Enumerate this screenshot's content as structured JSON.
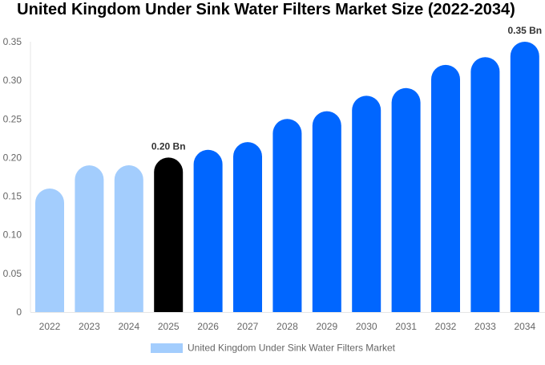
{
  "chart_data": {
    "type": "bar",
    "title": "United Kingdom Under Sink Water Filters Market Size (2022-2034)",
    "categories": [
      "2022",
      "2023",
      "2024",
      "2025",
      "2026",
      "2027",
      "2028",
      "2029",
      "2030",
      "2031",
      "2032",
      "2033",
      "2034"
    ],
    "series": [
      {
        "name": "United Kingdom Under Sink Water Filters Market",
        "values": [
          0.16,
          0.19,
          0.19,
          0.2,
          0.21,
          0.22,
          0.25,
          0.26,
          0.28,
          0.29,
          0.32,
          0.33,
          0.35
        ]
      }
    ],
    "data_labels": [
      {
        "category": "2025",
        "text": "0.20 Bn"
      },
      {
        "category": "2034",
        "text": "0.35 Bn"
      }
    ],
    "yticks": [
      "0",
      "0.05",
      "0.10",
      "0.15",
      "0.20",
      "0.25",
      "0.30",
      "0.35"
    ],
    "ylim": [
      0,
      0.35
    ],
    "grid": false,
    "legend_position": "bottom",
    "colors": {
      "historical": "#a3cdfd",
      "current": "#000000",
      "forecast": "#0066ff"
    }
  }
}
